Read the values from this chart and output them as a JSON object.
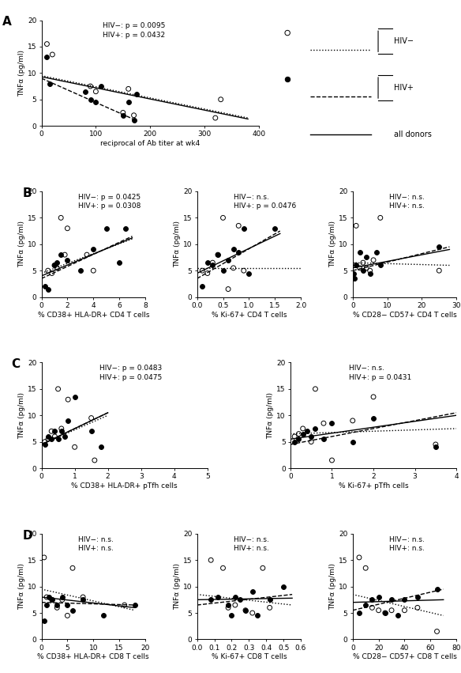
{
  "panel_A": {
    "label": "A",
    "xlabel": "reciprocal of Ab titer at wk4",
    "ylabel": "TNFα (pg/ml)",
    "xlim": [
      0,
      400
    ],
    "ylim": [
      0,
      20
    ],
    "xticks": [
      0,
      100,
      200,
      300,
      400
    ],
    "yticks": [
      0,
      5,
      10,
      15,
      20
    ],
    "annot": "HIV−: p = 0.0095\nHIV+: p = 0.0432",
    "hiv_neg_x": [
      10,
      20,
      90,
      100,
      150,
      160,
      170,
      320,
      330
    ],
    "hiv_neg_y": [
      15.5,
      13.5,
      7.5,
      6.5,
      2.5,
      7.0,
      2.0,
      1.5,
      5.0
    ],
    "hiv_pos_x": [
      10,
      15,
      80,
      90,
      100,
      110,
      150,
      160,
      170,
      175
    ],
    "hiv_pos_y": [
      13.0,
      8.0,
      6.5,
      5.0,
      4.5,
      7.5,
      2.0,
      4.5,
      1.0,
      6.0
    ],
    "neg_line_x": [
      0,
      380
    ],
    "neg_line_y": [
      9.5,
      1.5
    ],
    "pos_line_x": [
      0,
      175
    ],
    "pos_line_y": [
      9.0,
      1.0
    ],
    "all_line_x": [
      0,
      380
    ],
    "all_line_y": [
      9.3,
      1.3
    ]
  },
  "panel_B1": {
    "label": "B",
    "xlabel": "% CD38+ HLA-DR+ CD4 T cells",
    "ylabel": "TNFα (pg/ml)",
    "xlim": [
      0,
      8
    ],
    "ylim": [
      0,
      20
    ],
    "xticks": [
      0,
      2,
      4,
      6,
      8
    ],
    "yticks": [
      0,
      5,
      10,
      15,
      20
    ],
    "annot": "HIV−: p = 0.0425\nHIV+: p = 0.0308",
    "hiv_neg_x": [
      0.5,
      0.8,
      1.0,
      1.2,
      1.5,
      1.8,
      2.0,
      3.5,
      4.0
    ],
    "hiv_neg_y": [
      5.0,
      4.5,
      6.0,
      5.5,
      15.0,
      8.0,
      13.0,
      8.0,
      5.0
    ],
    "hiv_pos_x": [
      0.3,
      0.5,
      1.0,
      1.2,
      1.5,
      2.0,
      3.0,
      4.0,
      5.0,
      6.0,
      6.5
    ],
    "hiv_pos_y": [
      2.0,
      1.5,
      6.0,
      6.5,
      8.0,
      7.0,
      5.0,
      9.0,
      13.0,
      6.5,
      13.0
    ],
    "neg_line_x": [
      0,
      7
    ],
    "neg_line_y": [
      4.5,
      11.0
    ],
    "pos_line_x": [
      0,
      7
    ],
    "pos_line_y": [
      3.5,
      11.5
    ],
    "all_line_x": [
      0,
      7
    ],
    "all_line_y": [
      4.0,
      11.2
    ]
  },
  "panel_B2": {
    "xlabel": "% Ki-67+ CD4 T cells",
    "ylabel": "TNFα (pg/ml)",
    "xlim": [
      0.0,
      2.0
    ],
    "ylim": [
      0,
      20
    ],
    "xticks": [
      0.0,
      0.5,
      1.0,
      1.5,
      2.0
    ],
    "yticks": [
      0,
      5,
      10,
      15,
      20
    ],
    "annot": "HIV−: n.s.\nHIV+: p = 0.0476",
    "hiv_neg_x": [
      0.1,
      0.2,
      0.3,
      0.4,
      0.5,
      0.6,
      0.7,
      0.8,
      0.9
    ],
    "hiv_neg_y": [
      5.0,
      4.5,
      6.5,
      8.0,
      15.0,
      1.5,
      5.5,
      13.5,
      5.0
    ],
    "hiv_pos_x": [
      0.1,
      0.2,
      0.3,
      0.4,
      0.5,
      0.6,
      0.7,
      0.8,
      0.9,
      1.0,
      1.5
    ],
    "hiv_pos_y": [
      2.0,
      6.5,
      6.0,
      8.0,
      5.0,
      7.0,
      9.0,
      8.5,
      13.0,
      4.5,
      13.0
    ],
    "neg_line_x": [
      0,
      2.0
    ],
    "neg_line_y": [
      5.5,
      5.5
    ],
    "pos_line_x": [
      0,
      1.6
    ],
    "pos_line_y": [
      3.5,
      12.5
    ],
    "all_line_x": [
      0,
      1.6
    ],
    "all_line_y": [
      4.5,
      12.0
    ]
  },
  "panel_B3": {
    "xlabel": "% CD28− CD57+ CD4 T cells",
    "ylabel": "TNFα (pg/ml)",
    "xlim": [
      0,
      30
    ],
    "ylim": [
      0,
      20
    ],
    "xticks": [
      0,
      10,
      20,
      30
    ],
    "yticks": [
      0,
      5,
      10,
      15,
      20
    ],
    "annot": "HIV−: n.s.\nHIV+: n.s.",
    "hiv_neg_x": [
      0.5,
      1.0,
      2.0,
      3.0,
      4.0,
      5.0,
      6.0,
      8.0,
      25.0
    ],
    "hiv_neg_y": [
      6.0,
      13.5,
      5.5,
      6.5,
      5.5,
      5.0,
      7.0,
      15.0,
      5.0
    ],
    "hiv_pos_x": [
      0.3,
      0.5,
      1.0,
      2.0,
      3.0,
      4.0,
      5.0,
      7.0,
      8.0,
      25.0
    ],
    "hiv_pos_y": [
      4.5,
      3.5,
      6.0,
      8.5,
      5.0,
      7.5,
      4.5,
      8.5,
      6.0,
      9.5
    ],
    "neg_line_x": [
      0,
      28
    ],
    "neg_line_y": [
      6.5,
      6.0
    ],
    "pos_line_x": [
      0,
      28
    ],
    "pos_line_y": [
      5.0,
      9.5
    ],
    "all_line_x": [
      0,
      28
    ],
    "all_line_y": [
      5.5,
      9.0
    ]
  },
  "panel_C1": {
    "label": "C",
    "xlabel": "% CD38+ HLA-DR+ pTfh cells",
    "ylabel": "TNFα (pg/ml)",
    "xlim": [
      0,
      5
    ],
    "ylim": [
      0,
      20
    ],
    "xticks": [
      0,
      1,
      2,
      3,
      4,
      5
    ],
    "yticks": [
      0,
      5,
      10,
      15,
      20
    ],
    "annot": "HIV−: p = 0.0483\nHIV+: p = 0.0475",
    "hiv_neg_x": [
      0.1,
      0.2,
      0.3,
      0.4,
      0.5,
      0.6,
      0.8,
      1.0,
      1.5,
      1.6
    ],
    "hiv_neg_y": [
      5.0,
      5.5,
      7.0,
      6.0,
      15.0,
      7.5,
      13.0,
      4.0,
      9.5,
      1.5
    ],
    "hiv_pos_x": [
      0.1,
      0.2,
      0.3,
      0.4,
      0.5,
      0.6,
      0.7,
      0.8,
      1.0,
      1.5,
      1.8
    ],
    "hiv_pos_y": [
      4.5,
      6.0,
      5.5,
      7.0,
      5.5,
      7.0,
      6.0,
      9.0,
      13.5,
      7.0,
      4.0
    ],
    "neg_line_x": [
      0,
      2.0
    ],
    "neg_line_y": [
      4.5,
      10.0
    ],
    "pos_line_x": [
      0,
      2.0
    ],
    "pos_line_y": [
      4.5,
      10.5
    ],
    "all_line_x": [
      0,
      2.0
    ],
    "all_line_y": [
      4.5,
      10.5
    ]
  },
  "panel_C2": {
    "xlabel": "% Ki-67+ pTfh cells",
    "ylabel": "TNFα (pg/ml)",
    "xlim": [
      0,
      4
    ],
    "ylim": [
      0,
      20
    ],
    "xticks": [
      0,
      1,
      2,
      3,
      4
    ],
    "yticks": [
      0,
      5,
      10,
      15,
      20
    ],
    "annot": "HIV−: n.s.\nHIV+: p = 0.0431",
    "hiv_neg_x": [
      0.1,
      0.2,
      0.3,
      0.5,
      0.6,
      0.8,
      1.0,
      1.5,
      2.0,
      3.5
    ],
    "hiv_neg_y": [
      6.0,
      6.5,
      7.5,
      5.0,
      15.0,
      8.5,
      1.5,
      9.0,
      13.5,
      4.5
    ],
    "hiv_pos_x": [
      0.1,
      0.2,
      0.3,
      0.4,
      0.5,
      0.6,
      0.8,
      1.0,
      1.5,
      2.0,
      3.5
    ],
    "hiv_pos_y": [
      5.0,
      5.5,
      6.5,
      7.0,
      6.0,
      7.5,
      5.5,
      8.5,
      5.0,
      9.5,
      4.0
    ],
    "neg_line_x": [
      0,
      4.0
    ],
    "neg_line_y": [
      6.5,
      7.5
    ],
    "pos_line_x": [
      0,
      4.0
    ],
    "pos_line_y": [
      4.5,
      10.5
    ],
    "all_line_x": [
      0,
      4.0
    ],
    "all_line_y": [
      5.5,
      10.0
    ]
  },
  "panel_D1": {
    "label": "D",
    "xlabel": "% CD38+ HLA-DR+ CD8 T cells",
    "ylabel": "TNFα (pg/ml)",
    "xlim": [
      0,
      20
    ],
    "ylim": [
      0,
      20
    ],
    "xticks": [
      0,
      5,
      10,
      15,
      20
    ],
    "yticks": [
      0,
      5,
      10,
      15,
      20
    ],
    "annot": "HIV−: n.s.\nHIV+: n.s.",
    "hiv_neg_x": [
      0.5,
      1.0,
      2.0,
      3.0,
      4.0,
      5.0,
      6.0,
      8.0,
      16.0
    ],
    "hiv_neg_y": [
      15.5,
      8.0,
      7.5,
      6.0,
      7.5,
      4.5,
      13.5,
      8.0,
      6.5
    ],
    "hiv_pos_x": [
      0.5,
      1.0,
      1.5,
      2.0,
      3.0,
      4.0,
      5.0,
      6.0,
      8.0,
      12.0,
      18.0
    ],
    "hiv_pos_y": [
      3.5,
      6.5,
      8.0,
      7.5,
      6.5,
      8.0,
      6.5,
      5.5,
      7.5,
      4.5,
      6.5
    ],
    "neg_line_x": [
      0,
      18
    ],
    "neg_line_y": [
      9.5,
      5.5
    ],
    "pos_line_x": [
      0,
      18
    ],
    "pos_line_y": [
      7.0,
      6.5
    ],
    "all_line_x": [
      0,
      18
    ],
    "all_line_y": [
      8.0,
      6.0
    ]
  },
  "panel_D2": {
    "xlabel": "% Ki-67+ CD8 T cells",
    "ylabel": "TNFα (pg/ml)",
    "xlim": [
      0.0,
      0.6
    ],
    "ylim": [
      0,
      20
    ],
    "xticks": [
      0.0,
      0.1,
      0.2,
      0.3,
      0.4,
      0.5,
      0.6
    ],
    "yticks": [
      0,
      5,
      10,
      15,
      20
    ],
    "annot": "HIV−: n.s.\nHIV+: n.s.",
    "hiv_neg_x": [
      0.08,
      0.15,
      0.18,
      0.22,
      0.28,
      0.32,
      0.38,
      0.42
    ],
    "hiv_neg_y": [
      15.0,
      13.5,
      6.0,
      6.5,
      5.5,
      5.0,
      13.5,
      6.0
    ],
    "hiv_pos_x": [
      0.08,
      0.12,
      0.18,
      0.2,
      0.22,
      0.25,
      0.28,
      0.32,
      0.35,
      0.42,
      0.5
    ],
    "hiv_pos_y": [
      7.5,
      8.0,
      6.5,
      4.5,
      8.0,
      7.5,
      5.5,
      9.0,
      4.5,
      7.5,
      10.0
    ],
    "neg_line_x": [
      0,
      0.55
    ],
    "neg_line_y": [
      8.5,
      6.5
    ],
    "pos_line_x": [
      0,
      0.55
    ],
    "pos_line_y": [
      6.5,
      8.5
    ],
    "all_line_x": [
      0,
      0.55
    ],
    "all_line_y": [
      7.5,
      7.8
    ]
  },
  "panel_D3": {
    "xlabel": "% CD28− CD57+ CD8 T cells",
    "ylabel": "TNFα (pg/ml)",
    "xlim": [
      0,
      80
    ],
    "ylim": [
      0,
      20
    ],
    "xticks": [
      0,
      20,
      40,
      60,
      80
    ],
    "yticks": [
      0,
      5,
      10,
      15,
      20
    ],
    "annot": "HIV−: n.s.\nHIV+: n.s.",
    "hiv_neg_x": [
      5.0,
      10.0,
      15.0,
      20.0,
      25.0,
      30.0,
      40.0,
      50.0,
      65.0
    ],
    "hiv_neg_y": [
      15.5,
      13.5,
      6.0,
      5.5,
      5.0,
      5.5,
      5.5,
      6.0,
      1.5
    ],
    "hiv_pos_x": [
      5.0,
      10.0,
      15.0,
      20.0,
      25.0,
      30.0,
      35.0,
      40.0,
      50.0,
      65.0
    ],
    "hiv_pos_y": [
      5.0,
      6.5,
      7.5,
      8.0,
      5.0,
      7.5,
      4.5,
      7.5,
      8.0,
      9.5
    ],
    "neg_line_x": [
      0,
      70
    ],
    "neg_line_y": [
      8.5,
      4.5
    ],
    "pos_line_x": [
      0,
      70
    ],
    "pos_line_y": [
      5.5,
      9.5
    ],
    "all_line_x": [
      0,
      70
    ],
    "all_line_y": [
      7.0,
      7.5
    ]
  },
  "marker_size": 18,
  "linewidth": 1.0,
  "font_size": 6.5,
  "annot_font_size": 6.5,
  "label_font_size": 11
}
